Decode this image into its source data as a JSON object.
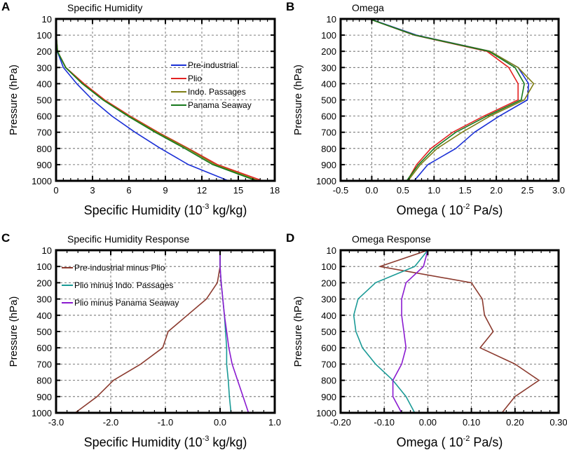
{
  "chart_data": [
    {
      "type": "line",
      "panel": "A",
      "title": "Specific Humidity",
      "xlabel": "Specific Humidity (10",
      "xlabel_exp": "-3",
      "xlabel_unit": " kg/kg)",
      "ylabel": "Pressure (hPa)",
      "xlim": [
        0,
        18
      ],
      "xticks": [
        0,
        3,
        6,
        9,
        12,
        15,
        18
      ],
      "xtick_labels": [
        "0",
        "3",
        "6",
        "9",
        "12",
        "15",
        "18"
      ],
      "y": [
        10,
        100,
        200,
        300,
        400,
        500,
        600,
        700,
        800,
        900,
        1000
      ],
      "ytick_labels": [
        "10",
        "100",
        "200",
        "300",
        "400",
        "500",
        "600",
        "700",
        "800",
        "900",
        "1000"
      ],
      "legend": "inside",
      "series": [
        {
          "name": "Pre-industrial",
          "color": "#1a2fd6",
          "values": [
            0.0,
            0.02,
            0.1,
            0.6,
            1.7,
            3.0,
            4.6,
            6.5,
            8.6,
            10.9,
            14.2
          ]
        },
        {
          "name": "Plio",
          "color": "#e32222",
          "values": [
            0.0,
            0.02,
            0.12,
            0.8,
            2.3,
            4.0,
            6.1,
            8.4,
            10.9,
            13.3,
            17.0
          ]
        },
        {
          "name": "Indo. Passages",
          "color": "#7d7d14",
          "values": [
            0.0,
            0.02,
            0.12,
            0.8,
            2.2,
            3.9,
            6.0,
            8.3,
            10.8,
            13.1,
            16.7
          ]
        },
        {
          "name": "Panama Seaway",
          "color": "#16781c",
          "values": [
            0.0,
            0.02,
            0.11,
            0.78,
            2.15,
            3.85,
            5.9,
            8.15,
            10.6,
            12.9,
            16.5
          ]
        }
      ]
    },
    {
      "type": "line",
      "panel": "B",
      "title": "Omega",
      "xlabel": "Omega ( 10",
      "xlabel_exp": "-2",
      "xlabel_unit": " Pa/s)",
      "ylabel": "Pressure (hPa)",
      "xlim": [
        -0.5,
        3.0
      ],
      "xticks": [
        -0.5,
        0.0,
        0.5,
        1.0,
        1.5,
        2.0,
        2.5,
        3.0
      ],
      "xtick_labels": [
        "-0.5",
        "0.0",
        "0.5",
        "1.0",
        "1.5",
        "2.0",
        "2.5",
        "3.0"
      ],
      "y": [
        10,
        100,
        200,
        300,
        400,
        500,
        600,
        700,
        800,
        900,
        1000
      ],
      "ytick_labels": [
        "10",
        "100",
        "200",
        "300",
        "400",
        "500",
        "600",
        "700",
        "800",
        "900",
        "1000"
      ],
      "series": [
        {
          "name": "Pre-industrial",
          "color": "#1a2fd6",
          "values": [
            -0.03,
            0.72,
            1.9,
            2.35,
            2.52,
            2.5,
            2.05,
            1.65,
            1.35,
            0.9,
            0.68
          ]
        },
        {
          "name": "Plio",
          "color": "#e32222",
          "values": [
            -0.04,
            0.68,
            1.85,
            2.2,
            2.35,
            2.35,
            1.8,
            1.3,
            0.95,
            0.72,
            0.57
          ]
        },
        {
          "name": "Indo. Passages",
          "color": "#7d7d14",
          "values": [
            -0.04,
            0.7,
            1.9,
            2.35,
            2.6,
            2.45,
            1.9,
            1.45,
            1.05,
            0.78,
            0.58
          ]
        },
        {
          "name": "Panama Seaway",
          "color": "#16781c",
          "values": [
            -0.04,
            0.69,
            1.88,
            2.3,
            2.45,
            2.4,
            1.85,
            1.35,
            1.0,
            0.75,
            0.56
          ]
        }
      ]
    },
    {
      "type": "line",
      "panel": "C",
      "title": "Specific Humidity Response",
      "xlabel": "Specific Humidity (10",
      "xlabel_exp": "-3",
      "xlabel_unit": " kg/kg)",
      "ylabel": "Pressure (hPa)",
      "xlim": [
        -3.0,
        1.0
      ],
      "xticks": [
        -3.0,
        -2.0,
        -1.0,
        0.0,
        1.0
      ],
      "xtick_labels": [
        "-3.0",
        "-2.0",
        "-1.0",
        "0.0",
        "1.0"
      ],
      "y": [
        10,
        100,
        200,
        300,
        400,
        500,
        600,
        700,
        800,
        900,
        1000
      ],
      "ytick_labels": [
        "10",
        "100",
        "200",
        "300",
        "400",
        "500",
        "600",
        "700",
        "800",
        "900",
        "1000"
      ],
      "legend": "inside",
      "series": [
        {
          "name": "Pre-industrial minus Plio",
          "color": "#8b3a2e",
          "values": [
            0.0,
            0.0,
            -0.05,
            -0.25,
            -0.6,
            -0.95,
            -1.05,
            -1.45,
            -1.95,
            -2.25,
            -2.65
          ]
        },
        {
          "name": "Plio minus Indo. Passages",
          "color": "#1a9a96",
          "values": [
            0.0,
            0.0,
            0.02,
            0.05,
            0.08,
            0.1,
            0.12,
            0.12,
            0.15,
            0.17,
            0.2
          ]
        },
        {
          "name": "Plio minus Panama Seaway",
          "color": "#8a1ad0",
          "values": [
            0.0,
            0.0,
            0.02,
            0.05,
            0.08,
            0.12,
            0.16,
            0.22,
            0.32,
            0.42,
            0.52
          ]
        }
      ]
    },
    {
      "type": "line",
      "panel": "D",
      "title": "Omega Response",
      "xlabel": "Omega ( 10",
      "xlabel_exp": "-2",
      "xlabel_unit": " Pa/s)",
      "ylabel": "Pressure (hPa)",
      "xlim": [
        -0.2,
        0.3
      ],
      "xticks": [
        -0.2,
        -0.1,
        0.0,
        0.1,
        0.2,
        0.3
      ],
      "xtick_labels": [
        "-0.20",
        "-0.10",
        "0.00",
        "0.10",
        "0.20",
        "0.30"
      ],
      "y": [
        10,
        100,
        200,
        300,
        400,
        500,
        600,
        700,
        800,
        900,
        1000
      ],
      "ytick_labels": [
        "10",
        "100",
        "200",
        "300",
        "400",
        "500",
        "600",
        "700",
        "800",
        "900",
        "1000"
      ],
      "series": [
        {
          "name": "Pre-industrial minus Plio",
          "color": "#8b3a2e",
          "values": [
            0.0,
            -0.11,
            0.1,
            0.125,
            0.13,
            0.15,
            0.12,
            0.2,
            0.255,
            0.2,
            0.17
          ]
        },
        {
          "name": "Plio minus Indo. Passages",
          "color": "#1a9a96",
          "values": [
            0.0,
            -0.03,
            -0.12,
            -0.16,
            -0.17,
            -0.165,
            -0.15,
            -0.12,
            -0.08,
            -0.05,
            -0.03
          ]
        },
        {
          "name": "Plio minus Panama Seaway",
          "color": "#8a1ad0",
          "values": [
            0.0,
            -0.01,
            -0.05,
            -0.06,
            -0.06,
            -0.055,
            -0.05,
            -0.06,
            -0.08,
            -0.08,
            -0.06
          ]
        }
      ]
    }
  ]
}
